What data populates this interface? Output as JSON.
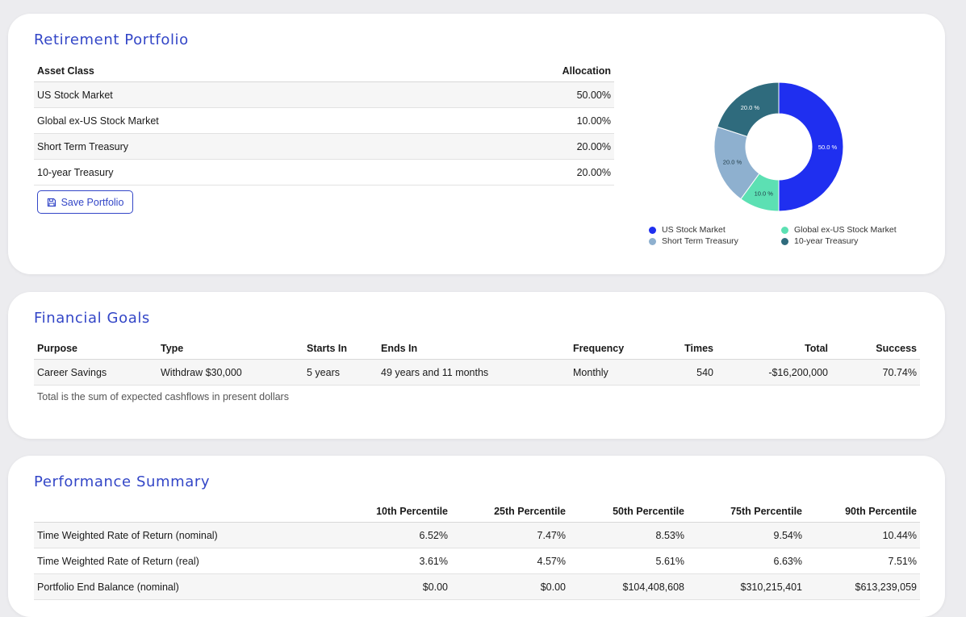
{
  "portfolio": {
    "title": "Retirement Portfolio",
    "columns": [
      "Asset Class",
      "Allocation"
    ],
    "rows": [
      {
        "asset": "US Stock Market",
        "allocation": "50.00%"
      },
      {
        "asset": "Global ex-US Stock Market",
        "allocation": "10.00%"
      },
      {
        "asset": "Short Term Treasury",
        "allocation": "20.00%"
      },
      {
        "asset": "10-year Treasury",
        "allocation": "20.00%"
      }
    ],
    "save_label": "Save Portfolio",
    "save_icon": "floppy-disk-icon"
  },
  "chart_data": {
    "type": "pie",
    "title": "",
    "categories": [
      "US Stock Market",
      "Global ex-US Stock Market",
      "Short Term Treasury",
      "10-year Treasury"
    ],
    "values": [
      50,
      10,
      20,
      20
    ],
    "labels": [
      "50.0 %",
      "10.0 %",
      "20.0 %",
      "20.0 %"
    ],
    "colors": [
      "#1f2ff0",
      "#5ce0b3",
      "#8eb0cf",
      "#2f6b7d"
    ],
    "legend_position": "bottom",
    "donut": true
  },
  "goals": {
    "title": "Financial Goals",
    "columns": [
      "Purpose",
      "Type",
      "Starts In",
      "Ends In",
      "Frequency",
      "Times",
      "Total",
      "Success"
    ],
    "rows": [
      {
        "purpose": "Career Savings",
        "type": "Withdraw $30,000",
        "starts_in": "5 years",
        "ends_in": "49 years and 11 months",
        "frequency": "Monthly",
        "times": "540",
        "total": "-$16,200,000",
        "success": "70.74%"
      }
    ],
    "note": "Total is the sum of expected cashflows in present dollars"
  },
  "performance": {
    "title": "Performance Summary",
    "columns": [
      "",
      "10th Percentile",
      "25th Percentile",
      "50th Percentile",
      "75th Percentile",
      "90th Percentile"
    ],
    "rows": [
      {
        "label": "Time Weighted Rate of Return (nominal)",
        "p10": "6.52%",
        "p25": "7.47%",
        "p50": "8.53%",
        "p75": "9.54%",
        "p90": "10.44%"
      },
      {
        "label": "Time Weighted Rate of Return (real)",
        "p10": "3.61%",
        "p25": "4.57%",
        "p50": "5.61%",
        "p75": "6.63%",
        "p90": "7.51%"
      },
      {
        "label": "Portfolio End Balance (nominal)",
        "p10": "$0.00",
        "p25": "$0.00",
        "p50": "$104,408,608",
        "p75": "$310,215,401",
        "p90": "$613,239,059"
      }
    ]
  }
}
